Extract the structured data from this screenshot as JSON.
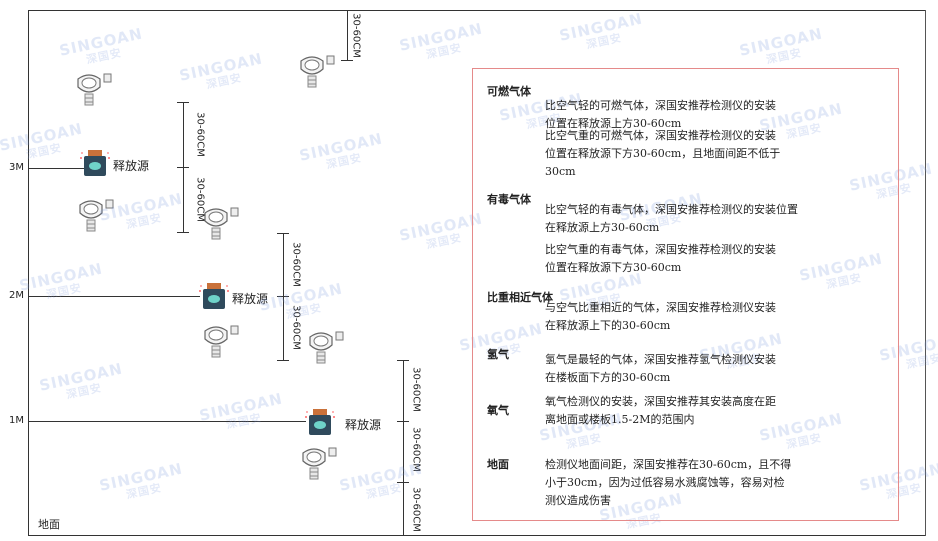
{
  "watermark": {
    "brand": "SINGOAN",
    "cn": "深国安"
  },
  "levels": [
    "3M",
    "2M",
    "1M"
  ],
  "ground_label": "地面",
  "source_label": "释放源",
  "dim_label": "30-60CM",
  "colors": {
    "box_border": "#e58a8a",
    "source_top": "#c9713a",
    "source_body": "#2f4a5c",
    "source_face": "#6fd3c9",
    "line": "#333333"
  },
  "panel": {
    "sections": [
      {
        "heading": "可燃气体",
        "paras": [
          "比空气轻的可燃气体，深国安推荐检测仪的安装\n位置在释放源上方30-60cm",
          "比空气重的可燃气体，深国安推荐检测仪的安装\n位置在释放源下方30-60cm，且地面间距不低于\n30cm"
        ]
      },
      {
        "heading": "有毒气体",
        "paras": [
          "比空气轻的有毒气体，深国安推荐检测仪的安装位置\n在释放源上方30-60cm",
          "比空气重的有毒气体，深国安推荐检测仪的安装\n位置在释放源下方30-60cm"
        ]
      },
      {
        "heading": "比重相近气体",
        "paras": [
          "与空气比重相近的气体，深国安推荐检测仪安装\n在释放源上下的30-60cm"
        ]
      },
      {
        "heading": "氢气",
        "paras": [
          "氢气是最轻的气体，深国安推荐氢气检测仪安装\n在楼板面下方的30-60cm"
        ]
      },
      {
        "heading": "氧气",
        "paras": [
          "氧气检测仪的安装，深国安推荐其安装高度在距\n离地面或楼板1.5-2M的范围内"
        ]
      },
      {
        "heading": "地面",
        "paras": [
          "检测仪地面间距，深国安推荐在30-60cm，且不得\n小于30cm，因为过低容易水溅腐蚀等，容易对检\n测仪造成伤害"
        ]
      }
    ]
  }
}
